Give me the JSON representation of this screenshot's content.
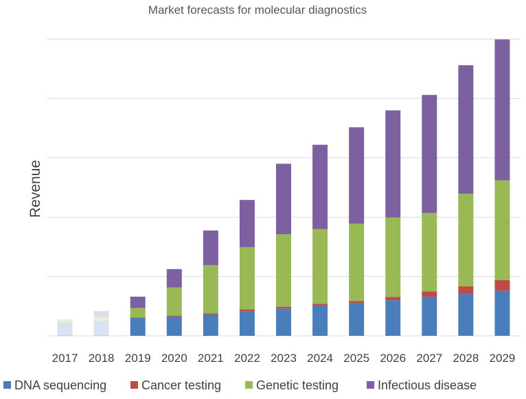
{
  "chart_data": {
    "type": "bar",
    "stacked": true,
    "title": "Market forecasts for molecular diagnostics",
    "xlabel": "",
    "ylabel": "Revenue",
    "ylim": [
      0,
      100
    ],
    "y_tick_labels_shown": false,
    "grid": true,
    "legend_position": "bottom",
    "categories": [
      "2017",
      "2018",
      "2019",
      "2020",
      "2021",
      "2022",
      "2023",
      "2024",
      "2025",
      "2026",
      "2027",
      "2028",
      "2029"
    ],
    "faded_categories": [
      "2017",
      "2018"
    ],
    "series": [
      {
        "name": "DNA sequencing",
        "color": "#4a7ebb",
        "values": [
          4.5,
          5,
          6,
          6.5,
          7.2,
          8.3,
          9.2,
          10.2,
          11.1,
          12,
          13.2,
          14.1,
          15.2
        ]
      },
      {
        "name": "Cancer testing",
        "color": "#be4b48",
        "values": [
          0,
          0,
          0.2,
          0.3,
          0.4,
          0.6,
          0.6,
          0.6,
          0.6,
          1.1,
          1.8,
          2.6,
          3.6
        ]
      },
      {
        "name": "Genetic testing",
        "color": "#98b954",
        "values": [
          1.1,
          1.3,
          3.2,
          9.5,
          16.2,
          21,
          24.4,
          25.2,
          26.1,
          26.8,
          26.4,
          31.2,
          33.6
        ]
      },
      {
        "name": "Infectious disease",
        "color": "#7d60a0",
        "values": [
          0,
          2.1,
          3.8,
          6.2,
          11.7,
          15.9,
          23.8,
          28.4,
          32.5,
          36.1,
          39.8,
          43.3,
          47.5
        ]
      }
    ]
  }
}
